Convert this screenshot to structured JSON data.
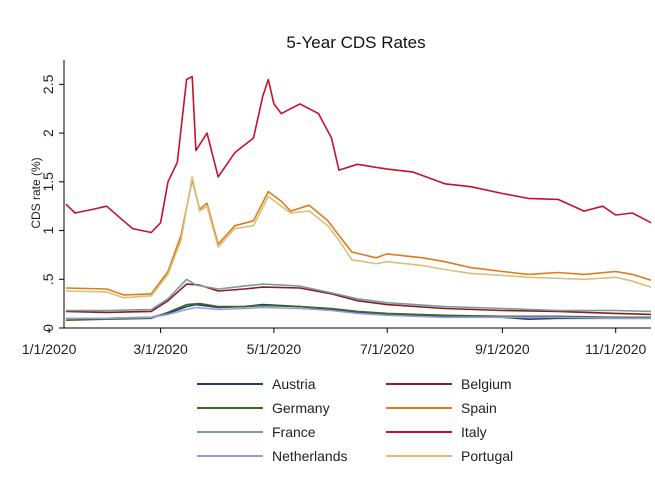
{
  "chart_data": {
    "type": "line",
    "title": "5-Year CDS Rates",
    "ylabel": "CDS rate (%)",
    "xlabel": "",
    "xlim": [
      "2020-01-09",
      "2020-11-20"
    ],
    "ylim": [
      0,
      2.75
    ],
    "x_ticks": [
      {
        "date": "2020-01-01",
        "label": "1/1/2020"
      },
      {
        "date": "2020-03-01",
        "label": "3/1/2020"
      },
      {
        "date": "2020-05-01",
        "label": "5/1/2020"
      },
      {
        "date": "2020-07-01",
        "label": "7/1/2020"
      },
      {
        "date": "2020-09-01",
        "label": "9/1/2020"
      },
      {
        "date": "2020-11-01",
        "label": "11/1/2020"
      }
    ],
    "y_ticks": [
      {
        "value": 0,
        "label": "0"
      },
      {
        "value": 0.5,
        "label": ".5"
      },
      {
        "value": 1,
        "label": "1"
      },
      {
        "value": 1.5,
        "label": "1.5"
      },
      {
        "value": 2,
        "label": "2"
      },
      {
        "value": 2.5,
        "label": "2.5"
      }
    ],
    "grid": false,
    "legend_position": "bottom",
    "series": [
      {
        "name": "Austria",
        "color": "#1f3a7a",
        "points": [
          [
            "2020-01-10",
            0.1
          ],
          [
            "2020-02-01",
            0.1
          ],
          [
            "2020-02-25",
            0.11
          ],
          [
            "2020-03-05",
            0.15
          ],
          [
            "2020-03-15",
            0.22
          ],
          [
            "2020-03-20",
            0.24
          ],
          [
            "2020-04-01",
            0.21
          ],
          [
            "2020-04-15",
            0.22
          ],
          [
            "2020-04-25",
            0.24
          ],
          [
            "2020-05-15",
            0.22
          ],
          [
            "2020-06-01",
            0.19
          ],
          [
            "2020-06-15",
            0.16
          ],
          [
            "2020-07-01",
            0.14
          ],
          [
            "2020-08-01",
            0.12
          ],
          [
            "2020-09-01",
            0.11
          ],
          [
            "2020-09-15",
            0.09
          ],
          [
            "2020-10-01",
            0.1
          ],
          [
            "2020-11-01",
            0.1
          ],
          [
            "2020-11-20",
            0.1
          ]
        ]
      },
      {
        "name": "Belgium",
        "color": "#8b1a2b",
        "points": [
          [
            "2020-01-10",
            0.17
          ],
          [
            "2020-02-01",
            0.16
          ],
          [
            "2020-02-25",
            0.17
          ],
          [
            "2020-03-05",
            0.28
          ],
          [
            "2020-03-15",
            0.45
          ],
          [
            "2020-03-22",
            0.44
          ],
          [
            "2020-04-01",
            0.38
          ],
          [
            "2020-04-15",
            0.4
          ],
          [
            "2020-04-25",
            0.42
          ],
          [
            "2020-05-15",
            0.41
          ],
          [
            "2020-06-01",
            0.35
          ],
          [
            "2020-06-15",
            0.28
          ],
          [
            "2020-07-01",
            0.24
          ],
          [
            "2020-08-01",
            0.2
          ],
          [
            "2020-09-01",
            0.18
          ],
          [
            "2020-10-01",
            0.17
          ],
          [
            "2020-11-01",
            0.15
          ],
          [
            "2020-11-20",
            0.14
          ]
        ]
      },
      {
        "name": "Germany",
        "color": "#3d6b1e",
        "points": [
          [
            "2020-01-10",
            0.08
          ],
          [
            "2020-02-01",
            0.09
          ],
          [
            "2020-02-25",
            0.1
          ],
          [
            "2020-03-05",
            0.16
          ],
          [
            "2020-03-15",
            0.24
          ],
          [
            "2020-03-22",
            0.25
          ],
          [
            "2020-04-01",
            0.22
          ],
          [
            "2020-04-15",
            0.22
          ],
          [
            "2020-04-25",
            0.23
          ],
          [
            "2020-05-15",
            0.22
          ],
          [
            "2020-06-01",
            0.2
          ],
          [
            "2020-06-15",
            0.17
          ],
          [
            "2020-07-01",
            0.15
          ],
          [
            "2020-08-01",
            0.13
          ],
          [
            "2020-09-01",
            0.12
          ],
          [
            "2020-10-01",
            0.12
          ],
          [
            "2020-11-01",
            0.11
          ],
          [
            "2020-11-20",
            0.11
          ]
        ]
      },
      {
        "name": "Spain",
        "color": "#e07b1c",
        "points": [
          [
            "2020-01-10",
            0.41
          ],
          [
            "2020-02-01",
            0.4
          ],
          [
            "2020-02-10",
            0.34
          ],
          [
            "2020-02-25",
            0.35
          ],
          [
            "2020-03-05",
            0.58
          ],
          [
            "2020-03-12",
            0.95
          ],
          [
            "2020-03-18",
            1.52
          ],
          [
            "2020-03-22",
            1.22
          ],
          [
            "2020-03-26",
            1.28
          ],
          [
            "2020-04-01",
            0.86
          ],
          [
            "2020-04-10",
            1.05
          ],
          [
            "2020-04-20",
            1.1
          ],
          [
            "2020-04-28",
            1.4
          ],
          [
            "2020-05-05",
            1.3
          ],
          [
            "2020-05-10",
            1.2
          ],
          [
            "2020-05-20",
            1.26
          ],
          [
            "2020-05-30",
            1.1
          ],
          [
            "2020-06-05",
            0.95
          ],
          [
            "2020-06-12",
            0.78
          ],
          [
            "2020-06-25",
            0.72
          ],
          [
            "2020-07-01",
            0.76
          ],
          [
            "2020-07-20",
            0.72
          ],
          [
            "2020-08-01",
            0.68
          ],
          [
            "2020-08-15",
            0.62
          ],
          [
            "2020-09-01",
            0.58
          ],
          [
            "2020-09-15",
            0.55
          ],
          [
            "2020-10-01",
            0.57
          ],
          [
            "2020-10-15",
            0.55
          ],
          [
            "2020-11-01",
            0.58
          ],
          [
            "2020-11-10",
            0.55
          ],
          [
            "2020-11-20",
            0.49
          ]
        ]
      },
      {
        "name": "France",
        "color": "#7a9e94",
        "points": [
          [
            "2020-01-10",
            0.18
          ],
          [
            "2020-02-01",
            0.18
          ],
          [
            "2020-02-25",
            0.19
          ],
          [
            "2020-03-05",
            0.3
          ],
          [
            "2020-03-15",
            0.5
          ],
          [
            "2020-03-20",
            0.44
          ],
          [
            "2020-04-01",
            0.4
          ],
          [
            "2020-04-15",
            0.43
          ],
          [
            "2020-04-25",
            0.45
          ],
          [
            "2020-05-15",
            0.43
          ],
          [
            "2020-06-01",
            0.36
          ],
          [
            "2020-06-15",
            0.3
          ],
          [
            "2020-07-01",
            0.26
          ],
          [
            "2020-08-01",
            0.22
          ],
          [
            "2020-09-01",
            0.2
          ],
          [
            "2020-10-01",
            0.18
          ],
          [
            "2020-11-01",
            0.18
          ],
          [
            "2020-11-20",
            0.17
          ]
        ]
      },
      {
        "name": "Italy",
        "color": "#c8102e",
        "points": [
          [
            "2020-01-10",
            1.27
          ],
          [
            "2020-01-15",
            1.18
          ],
          [
            "2020-01-25",
            1.22
          ],
          [
            "2020-02-01",
            1.25
          ],
          [
            "2020-02-10",
            1.1
          ],
          [
            "2020-02-15",
            1.02
          ],
          [
            "2020-02-25",
            0.98
          ],
          [
            "2020-03-01",
            1.08
          ],
          [
            "2020-03-05",
            1.5
          ],
          [
            "2020-03-10",
            1.7
          ],
          [
            "2020-03-15",
            2.55
          ],
          [
            "2020-03-18",
            2.58
          ],
          [
            "2020-03-20",
            1.82
          ],
          [
            "2020-03-26",
            2.0
          ],
          [
            "2020-04-01",
            1.55
          ],
          [
            "2020-04-10",
            1.8
          ],
          [
            "2020-04-20",
            1.95
          ],
          [
            "2020-04-25",
            2.38
          ],
          [
            "2020-04-28",
            2.55
          ],
          [
            "2020-05-01",
            2.3
          ],
          [
            "2020-05-05",
            2.2
          ],
          [
            "2020-05-15",
            2.3
          ],
          [
            "2020-05-25",
            2.2
          ],
          [
            "2020-06-01",
            1.95
          ],
          [
            "2020-06-05",
            1.62
          ],
          [
            "2020-06-15",
            1.68
          ],
          [
            "2020-07-01",
            1.63
          ],
          [
            "2020-07-15",
            1.6
          ],
          [
            "2020-08-01",
            1.48
          ],
          [
            "2020-08-15",
            1.45
          ],
          [
            "2020-09-01",
            1.38
          ],
          [
            "2020-09-15",
            1.33
          ],
          [
            "2020-10-01",
            1.32
          ],
          [
            "2020-10-15",
            1.2
          ],
          [
            "2020-10-25",
            1.25
          ],
          [
            "2020-11-01",
            1.16
          ],
          [
            "2020-11-10",
            1.18
          ],
          [
            "2020-11-20",
            1.08
          ]
        ]
      },
      {
        "name": "Netherlands",
        "color": "#9a9ae0",
        "points": [
          [
            "2020-01-10",
            0.1
          ],
          [
            "2020-02-01",
            0.1
          ],
          [
            "2020-02-25",
            0.11
          ],
          [
            "2020-03-05",
            0.14
          ],
          [
            "2020-03-15",
            0.19
          ],
          [
            "2020-03-20",
            0.21
          ],
          [
            "2020-04-01",
            0.19
          ],
          [
            "2020-04-15",
            0.2
          ],
          [
            "2020-04-25",
            0.21
          ],
          [
            "2020-05-15",
            0.2
          ],
          [
            "2020-06-01",
            0.18
          ],
          [
            "2020-06-15",
            0.15
          ],
          [
            "2020-07-01",
            0.13
          ],
          [
            "2020-08-01",
            0.11
          ],
          [
            "2020-09-01",
            0.11
          ],
          [
            "2020-10-01",
            0.11
          ],
          [
            "2020-11-01",
            0.1
          ],
          [
            "2020-11-20",
            0.1
          ]
        ]
      },
      {
        "name": "Portugal",
        "color": "#d6c27a",
        "points": [
          [
            "2020-01-10",
            0.38
          ],
          [
            "2020-02-01",
            0.37
          ],
          [
            "2020-02-10",
            0.31
          ],
          [
            "2020-02-25",
            0.33
          ],
          [
            "2020-03-05",
            0.55
          ],
          [
            "2020-03-12",
            0.9
          ],
          [
            "2020-03-18",
            1.55
          ],
          [
            "2020-03-22",
            1.2
          ],
          [
            "2020-03-26",
            1.25
          ],
          [
            "2020-04-01",
            0.83
          ],
          [
            "2020-04-10",
            1.02
          ],
          [
            "2020-04-20",
            1.05
          ],
          [
            "2020-04-28",
            1.35
          ],
          [
            "2020-05-05",
            1.25
          ],
          [
            "2020-05-10",
            1.18
          ],
          [
            "2020-05-20",
            1.2
          ],
          [
            "2020-05-30",
            1.05
          ],
          [
            "2020-06-05",
            0.9
          ],
          [
            "2020-06-12",
            0.7
          ],
          [
            "2020-06-25",
            0.66
          ],
          [
            "2020-07-01",
            0.68
          ],
          [
            "2020-07-20",
            0.64
          ],
          [
            "2020-08-01",
            0.6
          ],
          [
            "2020-08-15",
            0.56
          ],
          [
            "2020-09-01",
            0.54
          ],
          [
            "2020-09-15",
            0.52
          ],
          [
            "2020-10-01",
            0.51
          ],
          [
            "2020-10-15",
            0.5
          ],
          [
            "2020-11-01",
            0.52
          ],
          [
            "2020-11-10",
            0.48
          ],
          [
            "2020-11-20",
            0.42
          ]
        ]
      }
    ]
  }
}
